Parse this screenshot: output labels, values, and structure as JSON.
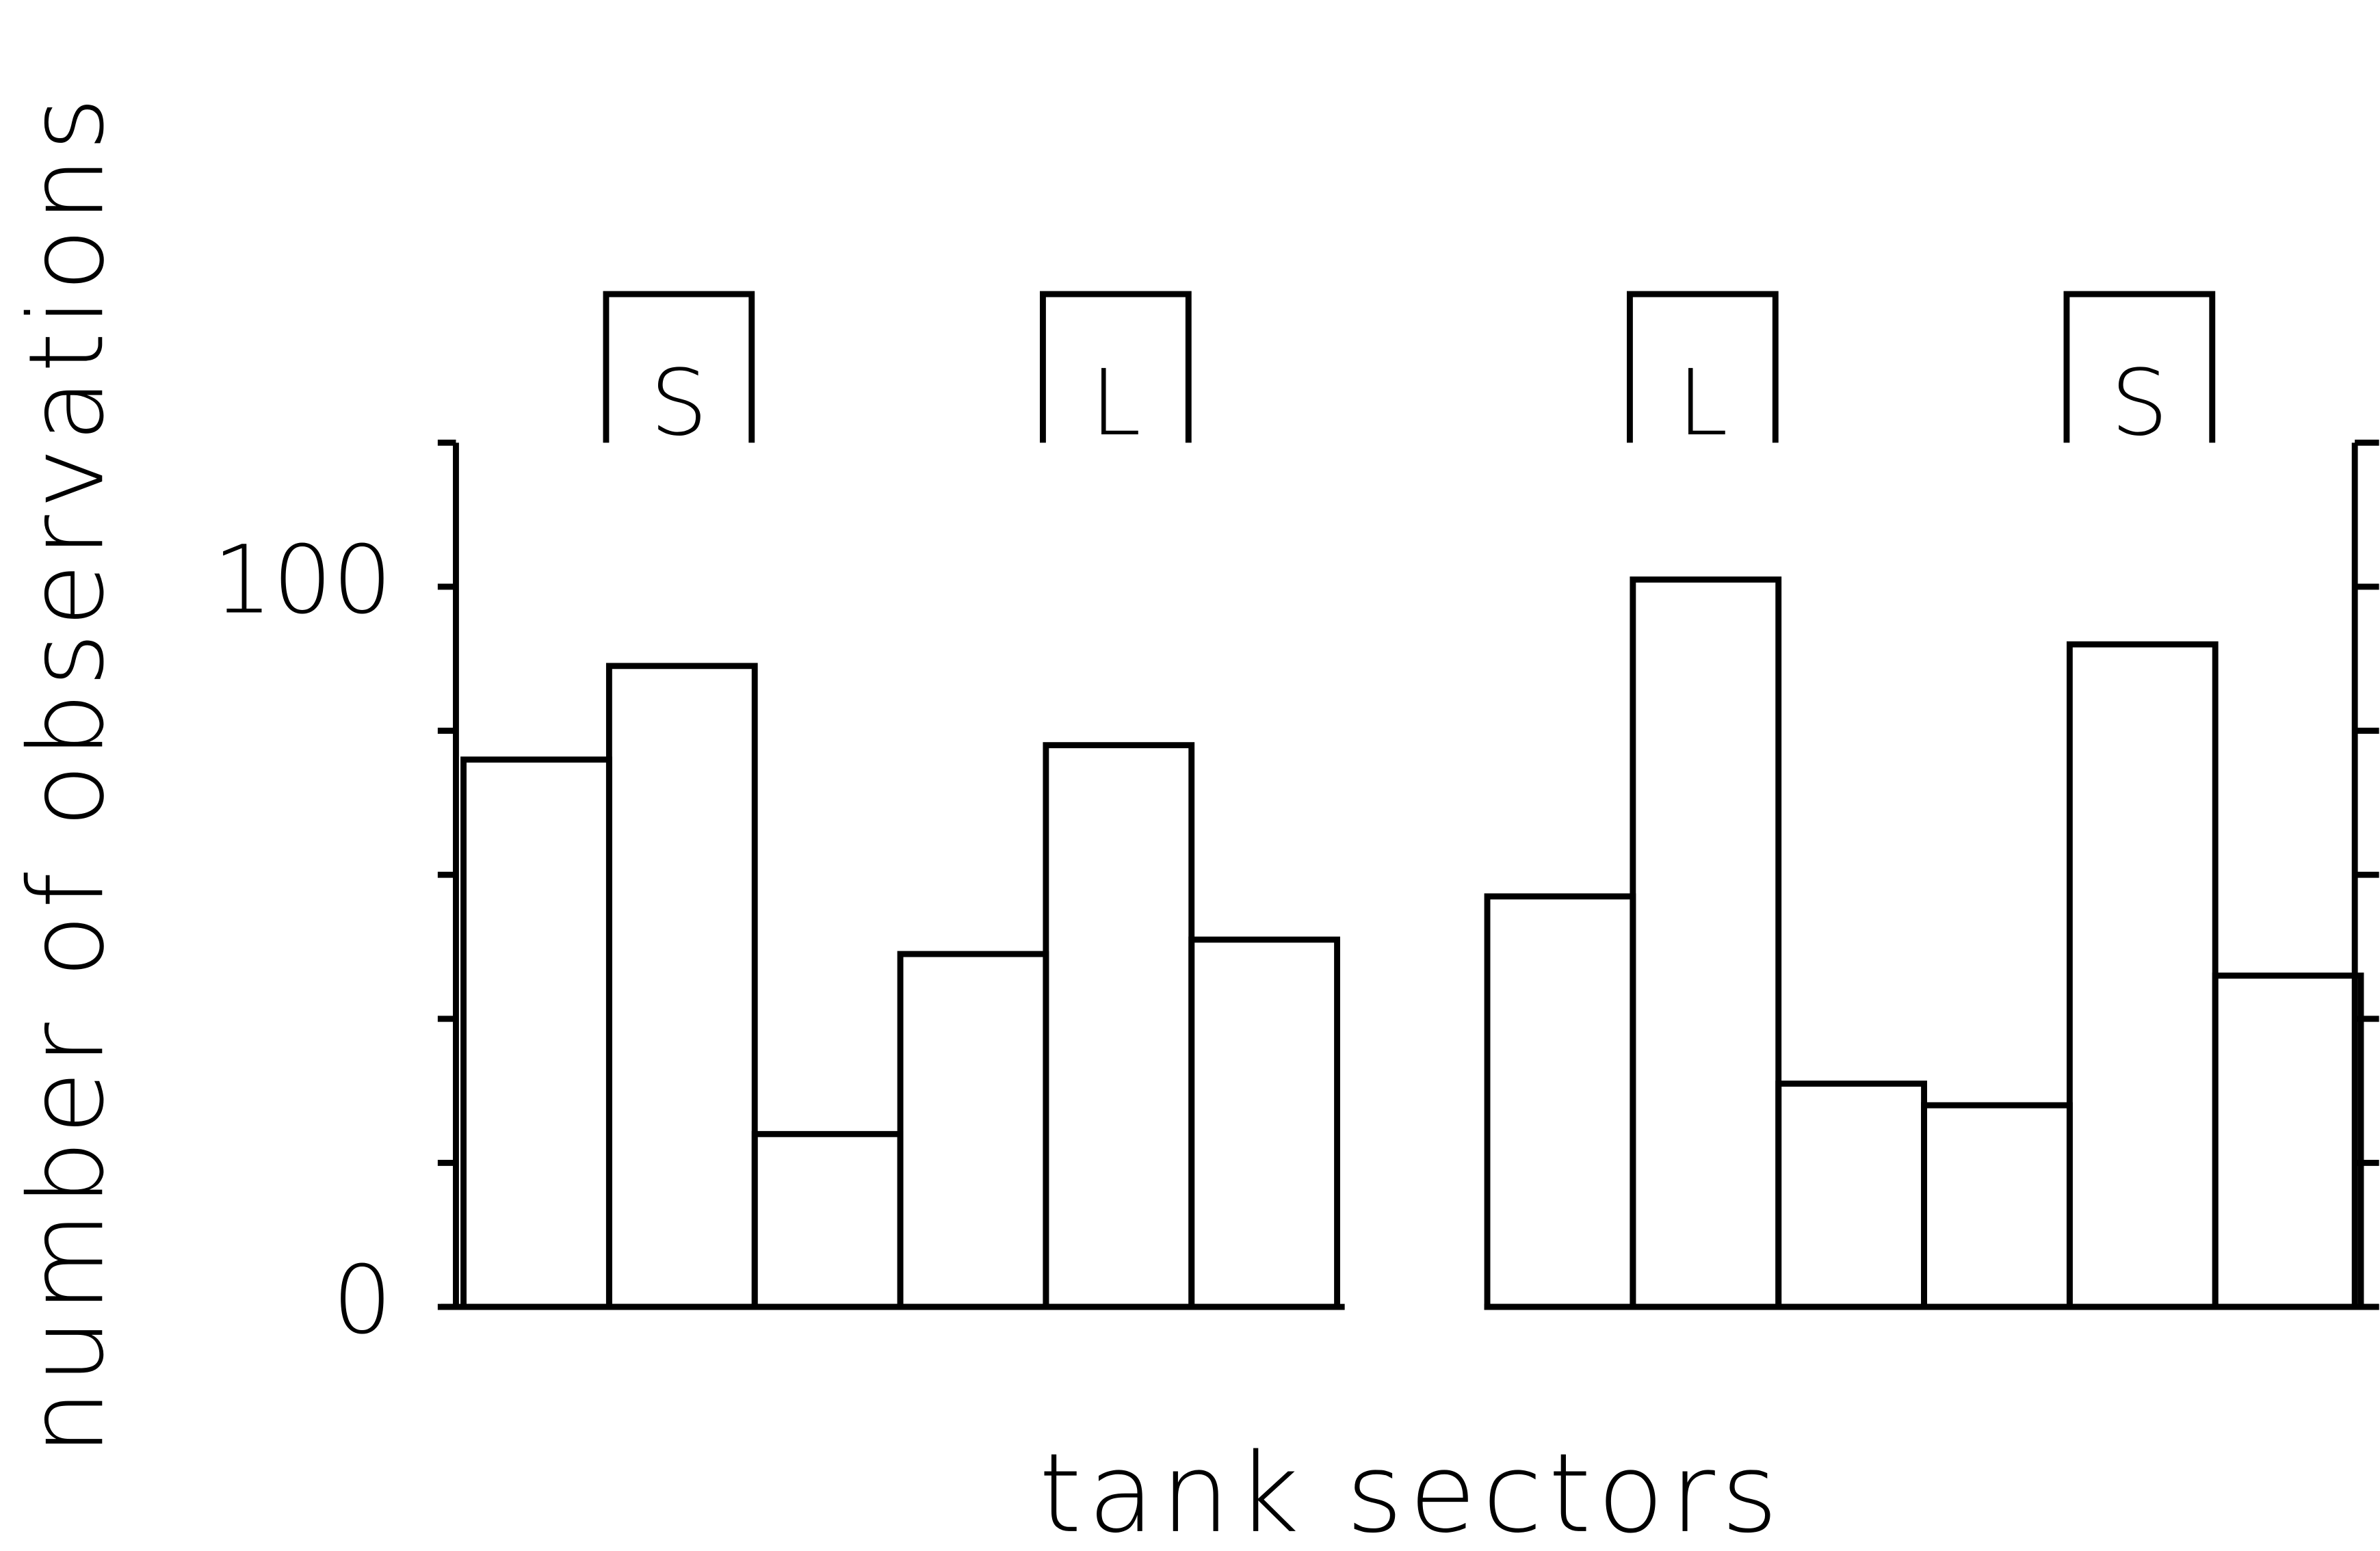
{
  "chart_data": {
    "type": "bar",
    "ylabel": "number of observations",
    "xlabel": "tank sectors",
    "ylim": [
      0,
      120
    ],
    "yticks": [
      0,
      100
    ],
    "yminorticks": [
      20,
      40,
      60,
      80,
      120
    ],
    "color": "#ffffff",
    "groups": [
      {
        "categories": [
          null,
          "S",
          null,
          null,
          "L",
          null
        ],
        "values": [
          76,
          89,
          24,
          49,
          78,
          51
        ]
      },
      {
        "categories": [
          null,
          "L",
          null,
          null,
          "S",
          null
        ],
        "values": [
          57,
          101,
          31,
          28,
          92,
          46
        ]
      }
    ]
  }
}
